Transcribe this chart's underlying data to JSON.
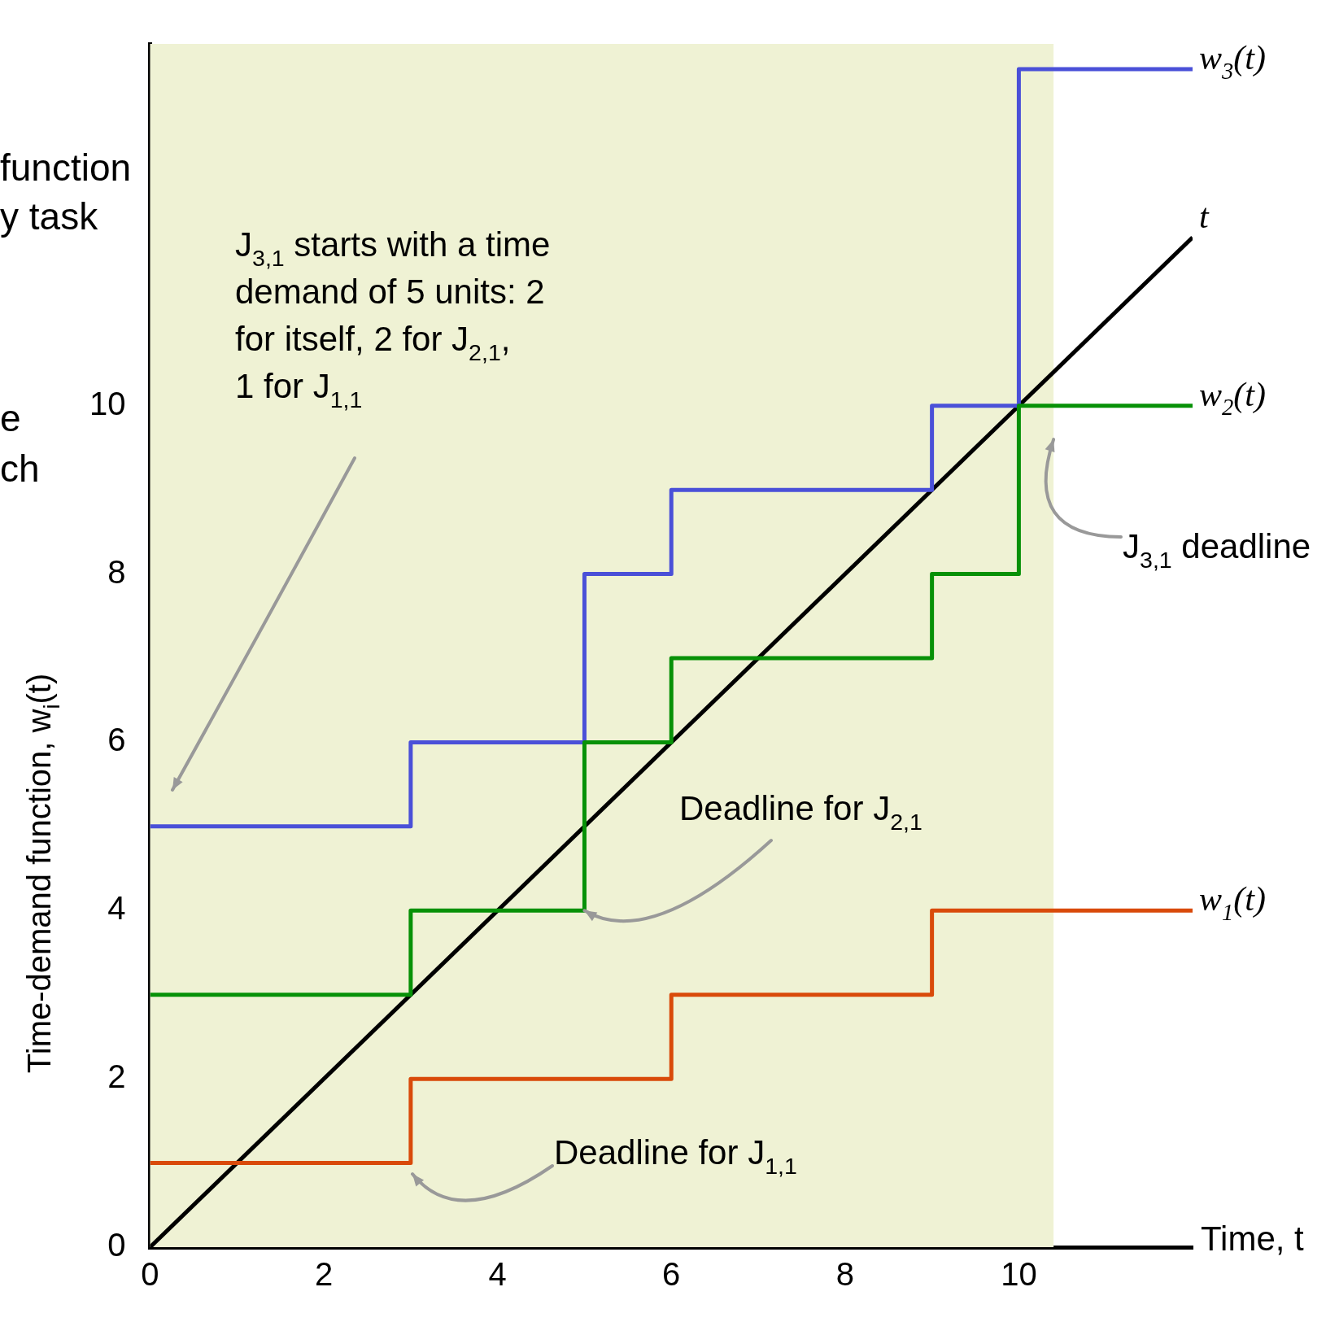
{
  "chart_data": {
    "type": "step",
    "xlabel": "Time, t",
    "ylabel": "Time-demand function, w$_{i}$(t)",
    "xlim": [
      0,
      12
    ],
    "ylim": [
      0,
      14.3
    ],
    "xticks": [
      0,
      2,
      4,
      6,
      8,
      10
    ],
    "yticks": [
      0,
      2,
      4,
      6,
      8,
      10
    ],
    "grid": false,
    "legend": false,
    "marker": "none",
    "series": [
      {
        "name": "w$_{1}$(t)",
        "color": "#d94a0a",
        "x": [
          0,
          3,
          6,
          9,
          12
        ],
        "values": [
          1,
          2,
          3,
          4,
          4
        ]
      },
      {
        "name": "w$_{2}$(t)",
        "color": "#079107",
        "x": [
          0,
          3,
          5,
          6,
          9,
          10,
          12
        ],
        "values": [
          3,
          4,
          6,
          7,
          8,
          10,
          10
        ]
      },
      {
        "name": "w$_{3}$(t)",
        "color": "#4a50d8",
        "x": [
          0,
          3,
          5,
          6,
          9,
          10,
          12
        ],
        "values": [
          5,
          6,
          8,
          9,
          10,
          14,
          14
        ]
      },
      {
        "name": "t",
        "type": "line",
        "color": "#000000",
        "x": [
          0,
          12
        ],
        "values": [
          0,
          12
        ]
      }
    ],
    "bands": [
      {
        "axis": "x",
        "from": 0,
        "to": 10.4,
        "color": "#eff2d4"
      }
    ],
    "annotations": [
      "J$_{3,1}$ starts with a time\ndemand of 5 units: 2\nfor itself, 2 for J$_{2,1}$,\n1 for J$_{1,1}$",
      {
        "text": "Deadline for J$_{2,1}$",
        "x": 5,
        "y": 4
      },
      "Deadline for J$_{1,1}$",
      {
        "text": "J$_{3,1}$ deadline",
        "x": 10.4,
        "y": 9.6
      },
      "function",
      "y task",
      "e",
      "ch"
    ]
  }
}
